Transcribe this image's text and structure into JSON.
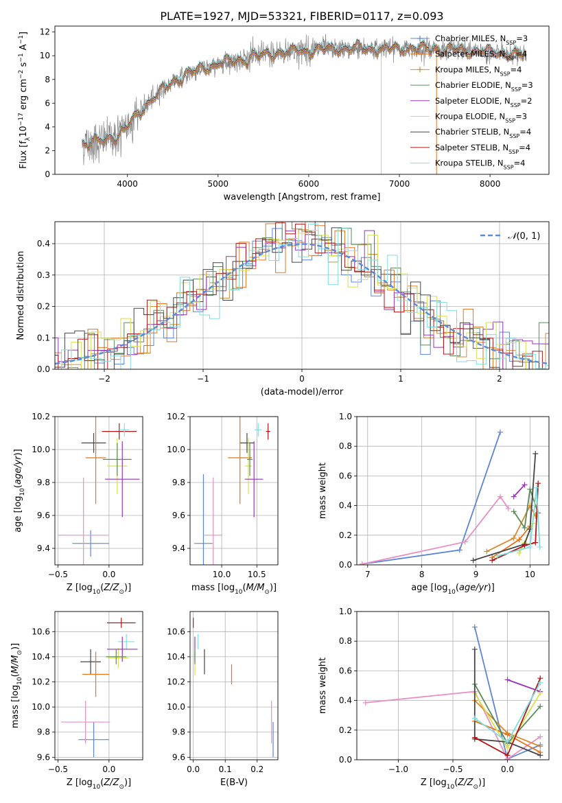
{
  "title": "PLATE=1927, MJD=53321, FIBERID=0117, z=0.093",
  "chart_data": [
    {
      "id": "spectrum",
      "type": "line",
      "xlabel": "wavelength [Angstrom, rest frame]",
      "ylabel": "Flux [f_λ10^-17 erg cm^-2 s^-1 A^-1]",
      "xlim": [
        3200,
        8650
      ],
      "ylim": [
        0,
        12.5
      ],
      "xticks": [
        4000,
        5000,
        6000,
        7000,
        8000
      ],
      "yticks": [
        0,
        2,
        4,
        6,
        8,
        10,
        12
      ],
      "legend_position": "right",
      "legend": [
        {
          "label": "Chabrier MILES, N",
          "sub": "SSP",
          "tail": "=3",
          "color": "#5b84d8",
          "marker": "plus"
        },
        {
          "label": "Salpeter MILES, N",
          "sub": "SSP",
          "tail": "=4",
          "color": "#e3731d",
          "marker": "none"
        },
        {
          "label": "Kroupa MILES, N",
          "sub": "SSP",
          "tail": "=4",
          "color": "#d9892e",
          "marker": "plus"
        },
        {
          "label": "Chabrier ELODIE, N",
          "sub": "SSP",
          "tail": "=3",
          "color": "#5a8a5a",
          "marker": "none"
        },
        {
          "label": "Salpeter ELODIE, N",
          "sub": "SSP",
          "tail": "=2",
          "color": "#9932b8",
          "marker": "none"
        },
        {
          "label": "Kroupa ELODIE, N",
          "sub": "SSP",
          "tail": "=3",
          "color": "#d6e04a",
          "marker": "none"
        },
        {
          "label": "Chabrier STELIB, N",
          "sub": "SSP",
          "tail": "=4",
          "color": "#444444",
          "marker": "none"
        },
        {
          "label": "Salpeter STELIB, N",
          "sub": "SSP",
          "tail": "=4",
          "color": "#b01515",
          "marker": "none"
        },
        {
          "label": "Kroupa STELIB, N",
          "sub": "SSP",
          "tail": "=4",
          "color": "#7fdde0",
          "marker": "none"
        }
      ],
      "continuum": [
        [
          3500,
          2.6
        ],
        [
          3700,
          2.8
        ],
        [
          3900,
          3.3
        ],
        [
          4000,
          4.0
        ],
        [
          4100,
          5.0
        ],
        [
          4300,
          6.6
        ],
        [
          4500,
          7.8
        ],
        [
          4700,
          8.6
        ],
        [
          5000,
          9.3
        ],
        [
          5300,
          9.8
        ],
        [
          5600,
          10.2
        ],
        [
          6000,
          10.5
        ],
        [
          6500,
          10.6
        ],
        [
          7000,
          10.6
        ],
        [
          7400,
          10.6
        ],
        [
          7600,
          10.5
        ],
        [
          8000,
          10.3
        ],
        [
          8300,
          10.1
        ],
        [
          8400,
          10.0
        ]
      ],
      "data_color": "#808080",
      "spikes": [
        {
          "x": 6800,
          "y0": 0,
          "y1": 10.3,
          "color": "#c9d96a"
        },
        {
          "x": 7410,
          "y0": 0,
          "y1": 11.0,
          "color": "#e3731d"
        }
      ]
    },
    {
      "id": "residuals",
      "type": "line",
      "xlabel": "(data-model)/error",
      "ylabel": "Normed distribution",
      "xlim": [
        -2.5,
        2.5
      ],
      "ylim": [
        0,
        0.47
      ],
      "xticks": [
        -2,
        -1,
        0,
        1,
        2
      ],
      "yticks": [
        0.0,
        0.1,
        0.2,
        0.3,
        0.4
      ],
      "legend_position": "top-right",
      "legend_label": "N(0,1)",
      "gaussian_color": "#5b8ad6",
      "bin_width": 0.1
    },
    {
      "id": "z-age",
      "type": "scatter",
      "xlabel": "Z [log10(Z/Z☉)]",
      "ylabel": "age [log10(age/yr)]",
      "xlim": [
        -0.53,
        0.33
      ],
      "ylim": [
        9.3,
        10.2
      ],
      "xticks": [
        -0.5,
        0.0
      ],
      "yticks": [
        9.4,
        9.6,
        9.8,
        10.0,
        10.2
      ],
      "points": [
        {
          "x": -0.18,
          "y": 9.43,
          "xerr": 0.18,
          "yerr": 0.08,
          "color": "#5b84d8"
        },
        {
          "x": -0.25,
          "y": 9.48,
          "xerr": 0.25,
          "yerr": 0.35,
          "color": "#e88ec4"
        },
        {
          "x": -0.15,
          "y": 10.04,
          "xerr": 0.12,
          "yerr": 0.06,
          "color": "#444444"
        },
        {
          "x": -0.13,
          "y": 9.95,
          "xerr": 0.1,
          "yerr": 0.28,
          "color": "#e3731d"
        },
        {
          "x": 0.1,
          "y": 10.11,
          "xerr": 0.17,
          "yerr": 0.05,
          "color": "#b01515"
        },
        {
          "x": 0.15,
          "y": 10.12,
          "xerr": 0.05,
          "yerr": 0.04,
          "color": "#7fdde0"
        },
        {
          "x": 0.08,
          "y": 9.9,
          "xerr": 0.1,
          "yerr": 0.17,
          "color": "#d6e04a"
        },
        {
          "x": 0.13,
          "y": 9.82,
          "xerr": 0.17,
          "yerr": 0.23,
          "color": "#9932b8"
        },
        {
          "x": 0.08,
          "y": 9.94,
          "xerr": 0.14,
          "yerr": 0.1,
          "color": "#5a8a5a"
        }
      ]
    },
    {
      "id": "mass-age",
      "type": "scatter",
      "xlabel": "mass [log10(M/M☉)]",
      "ylabel": "",
      "xlim": [
        9.55,
        10.8
      ],
      "ylim": [
        9.3,
        10.2
      ],
      "xticks": [
        10.0,
        10.5
      ],
      "yticks": [
        9.4,
        9.6,
        9.8,
        10.0,
        10.2
      ],
      "points": [
        {
          "x": 9.74,
          "y": 9.43,
          "xerr": 0.13,
          "yerr": 0.42,
          "color": "#5b84d8"
        },
        {
          "x": 9.88,
          "y": 9.48,
          "xerr": 0.13,
          "yerr": 0.35,
          "color": "#e88ec4"
        },
        {
          "x": 10.36,
          "y": 10.04,
          "xerr": 0.1,
          "yerr": 0.06,
          "color": "#444444"
        },
        {
          "x": 10.26,
          "y": 9.95,
          "xerr": 0.17,
          "yerr": 0.28,
          "color": "#e3731d"
        },
        {
          "x": 10.66,
          "y": 10.11,
          "xerr": 0.03,
          "yerr": 0.05,
          "color": "#b01515"
        },
        {
          "x": 10.52,
          "y": 10.12,
          "xerr": 0.05,
          "yerr": 0.04,
          "color": "#7fdde0"
        },
        {
          "x": 10.38,
          "y": 9.9,
          "xerr": 0.05,
          "yerr": 0.17,
          "color": "#d6e04a"
        },
        {
          "x": 10.46,
          "y": 9.82,
          "xerr": 0.13,
          "yerr": 0.23,
          "color": "#9932b8"
        },
        {
          "x": 10.4,
          "y": 9.94,
          "xerr": 0.04,
          "yerr": 0.1,
          "color": "#5a8a5a"
        }
      ]
    },
    {
      "id": "age-weight",
      "type": "line",
      "xlabel": "age [log10(age/yr)]",
      "ylabel": "mass weight",
      "xlim": [
        6.8,
        10.35
      ],
      "ylim": [
        0,
        1.0
      ],
      "xticks": [
        7,
        8,
        9,
        10
      ],
      "yticks": [
        0.0,
        0.2,
        0.4,
        0.6,
        0.8,
        1.0
      ],
      "series": [
        {
          "color": "#5b84d8",
          "points": [
            [
              6.9,
              0.005
            ],
            [
              8.7,
              0.1
            ],
            [
              9.45,
              0.895
            ]
          ]
        },
        {
          "color": "#e88ec4",
          "points": [
            [
              6.9,
              0.005
            ],
            [
              8.8,
              0.155
            ],
            [
              9.45,
              0.46
            ],
            [
              9.6,
              0.38
            ]
          ]
        },
        {
          "color": "#d9892e",
          "points": [
            [
              9.2,
              0.09
            ],
            [
              9.7,
              0.18
            ],
            [
              10.0,
              0.4
            ],
            [
              10.1,
              0.33
            ]
          ]
        },
        {
          "color": "#e3731d",
          "points": [
            [
              9.3,
              0.05
            ],
            [
              9.8,
              0.17
            ],
            [
              10.0,
              0.26
            ]
          ]
        },
        {
          "color": "#5a8a5a",
          "points": [
            [
              9.7,
              0.36
            ],
            [
              9.9,
              0.25
            ],
            [
              10.0,
              0.51
            ],
            [
              10.15,
              0.35
            ]
          ]
        },
        {
          "color": "#9932b8",
          "points": [
            [
              9.7,
              0.46
            ],
            [
              9.9,
              0.54
            ]
          ]
        },
        {
          "color": "#d6e04a",
          "points": [
            [
              9.8,
              0.08
            ],
            [
              9.9,
              0.15
            ],
            [
              10.05,
              0.28
            ],
            [
              10.1,
              0.45
            ]
          ]
        },
        {
          "color": "#444444",
          "points": [
            [
              8.95,
              0.03
            ],
            [
              9.9,
              0.14
            ],
            [
              10.0,
              0.24
            ],
            [
              10.1,
              0.75
            ]
          ]
        },
        {
          "color": "#b01515",
          "points": [
            [
              9.3,
              0.03
            ],
            [
              9.9,
              0.13
            ],
            [
              10.1,
              0.15
            ],
            [
              10.15,
              0.55
            ]
          ]
        },
        {
          "color": "#7fdde0",
          "points": [
            [
              9.4,
              0.06
            ],
            [
              10.0,
              0.12
            ],
            [
              10.12,
              0.52
            ],
            [
              10.18,
              0.12
            ]
          ]
        }
      ]
    },
    {
      "id": "z-mass",
      "type": "scatter",
      "xlabel": "Z [log10(Z/Z☉)]",
      "ylabel": "mass [log10(M/M☉)]",
      "xlim": [
        -0.53,
        0.33
      ],
      "ylim": [
        9.58,
        10.76
      ],
      "xticks": [
        -0.5,
        0.0
      ],
      "yticks": [
        9.6,
        9.8,
        10.0,
        10.2,
        10.4,
        10.6
      ],
      "points": [
        {
          "x": -0.15,
          "y": 9.74,
          "xerr": 0.15,
          "yerr": 0.14,
          "color": "#5b84d8"
        },
        {
          "x": -0.23,
          "y": 9.88,
          "xerr": 0.24,
          "yerr": 0.17,
          "color": "#e88ec4"
        },
        {
          "x": -0.18,
          "y": 10.36,
          "xerr": 0.1,
          "yerr": 0.1,
          "color": "#444444"
        },
        {
          "x": -0.13,
          "y": 10.26,
          "xerr": 0.13,
          "yerr": 0.18,
          "color": "#e3731d"
        },
        {
          "x": 0.12,
          "y": 10.67,
          "xerr": 0.14,
          "yerr": 0.04,
          "color": "#b01515"
        },
        {
          "x": 0.17,
          "y": 10.52,
          "xerr": 0.08,
          "yerr": 0.06,
          "color": "#7fdde0"
        },
        {
          "x": 0.09,
          "y": 10.39,
          "xerr": 0.1,
          "yerr": 0.08,
          "color": "#d6e04a"
        },
        {
          "x": 0.13,
          "y": 10.46,
          "xerr": 0.15,
          "yerr": 0.1,
          "color": "#9932b8"
        },
        {
          "x": 0.07,
          "y": 10.4,
          "xerr": 0.1,
          "yerr": 0.06,
          "color": "#5a8a5a"
        }
      ]
    },
    {
      "id": "ebv-mass",
      "type": "scatter",
      "xlabel": "E(B-V)",
      "ylabel": "",
      "xlim": [
        -0.01,
        0.265
      ],
      "ylim": [
        9.58,
        10.76
      ],
      "xticks": [
        0.0,
        0.1,
        0.2
      ],
      "yticks": [
        9.6,
        9.8,
        10.0,
        10.2,
        10.4,
        10.6
      ],
      "points": [
        {
          "x": 0.25,
          "y": 9.74,
          "xerr": 0.0,
          "yerr": 0.14,
          "color": "#5b84d8"
        },
        {
          "x": 0.245,
          "y": 9.88,
          "xerr": 0.0,
          "yerr": 0.17,
          "color": "#e88ec4"
        },
        {
          "x": 0.035,
          "y": 10.36,
          "xerr": 0.0,
          "yerr": 0.1,
          "color": "#444444"
        },
        {
          "x": 0.12,
          "y": 10.26,
          "xerr": 0.0,
          "yerr": 0.08,
          "color": "#e3731d"
        },
        {
          "x": 0.0,
          "y": 10.67,
          "xerr": 0.0,
          "yerr": 0.04,
          "color": "#b01515"
        },
        {
          "x": 0.015,
          "y": 10.52,
          "xerr": 0.0,
          "yerr": 0.06,
          "color": "#7fdde0"
        },
        {
          "x": 0.005,
          "y": 10.35,
          "xerr": 0.0,
          "yerr": 0.1,
          "color": "#d6e04a"
        },
        {
          "x": 0.005,
          "y": 10.46,
          "xerr": 0.0,
          "yerr": 0.1,
          "color": "#9932b8"
        },
        {
          "x": 0.005,
          "y": 10.4,
          "xerr": 0.0,
          "yerr": 0.06,
          "color": "#5a8a5a"
        }
      ]
    },
    {
      "id": "z-weight",
      "type": "line",
      "xlabel": "Z [log10(Z/Z☉)]",
      "ylabel": "mass weight",
      "xlim": [
        -1.38,
        0.38
      ],
      "ylim": [
        0,
        1.0
      ],
      "xticks": [
        -1.0,
        -0.5,
        0.0
      ],
      "yticks": [
        0.0,
        0.2,
        0.4,
        0.6,
        0.8,
        1.0
      ],
      "series": [
        {
          "color": "#5b84d8",
          "points": [
            [
              -0.3,
              0.895
            ],
            [
              0.0,
              0.005
            ],
            [
              0.3,
              0.1
            ]
          ]
        },
        {
          "color": "#e88ec4",
          "points": [
            [
              -1.3,
              0.385
            ],
            [
              -0.3,
              0.46
            ],
            [
              0.0,
              0.005
            ],
            [
              0.3,
              0.155
            ]
          ]
        },
        {
          "color": "#d9892e",
          "points": [
            [
              -0.3,
              0.4
            ],
            [
              0.0,
              0.18
            ],
            [
              0.3,
              0.09
            ]
          ]
        },
        {
          "color": "#e3731d",
          "points": [
            [
              -0.3,
              0.26
            ],
            [
              0.0,
              0.17
            ],
            [
              0.3,
              0.05
            ]
          ]
        },
        {
          "color": "#5a8a5a",
          "points": [
            [
              -0.3,
              0.51
            ],
            [
              0.0,
              0.11
            ],
            [
              0.3,
              0.36
            ]
          ]
        },
        {
          "color": "#9932b8",
          "points": [
            [
              0.0,
              0.54
            ],
            [
              0.3,
              0.46
            ]
          ]
        },
        {
          "color": "#d6e04a",
          "points": [
            [
              -0.3,
              0.45
            ],
            [
              0.0,
              0.08
            ],
            [
              0.3,
              0.45
            ]
          ]
        },
        {
          "color": "#444444",
          "points": [
            [
              -0.3,
              0.745
            ],
            [
              -0.3,
              0.14
            ],
            [
              0.0,
              0.12
            ],
            [
              0.3,
              0.03
            ]
          ]
        },
        {
          "color": "#b01515",
          "points": [
            [
              -0.3,
              0.15
            ],
            [
              0.0,
              0.03
            ],
            [
              0.3,
              0.55
            ]
          ]
        },
        {
          "color": "#7fdde0",
          "points": [
            [
              -0.3,
              0.28
            ],
            [
              0.0,
              0.12
            ],
            [
              0.3,
              0.52
            ]
          ]
        }
      ]
    }
  ]
}
